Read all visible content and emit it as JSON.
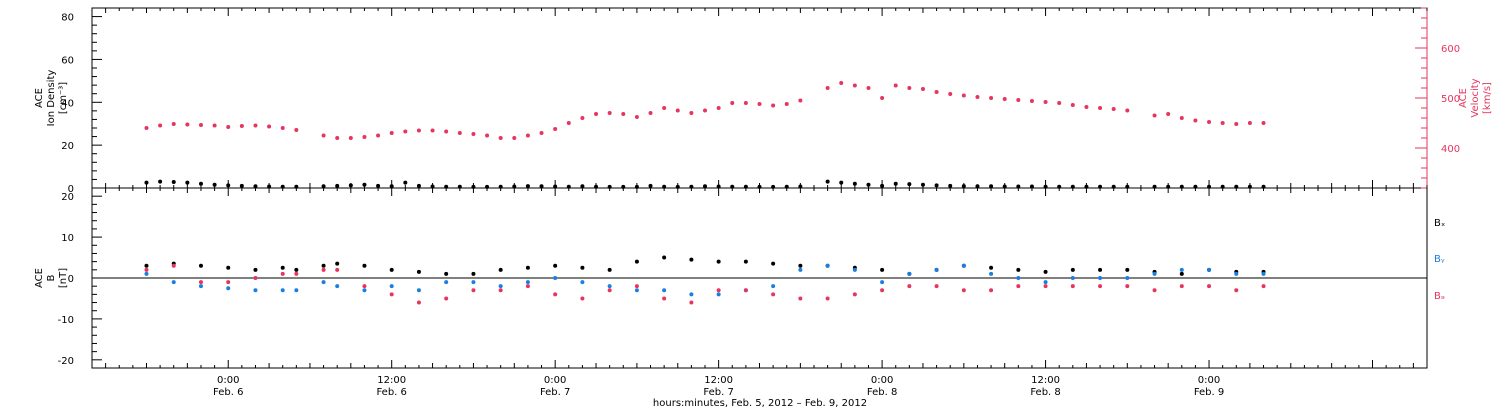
{
  "chart_data": [
    {
      "type": "scatter",
      "panel": "top",
      "ylabel": "ACE Ion Density [cm⁻³]",
      "ylabel_lines": [
        "ACE",
        "Ion Density",
        "[cm⁻³]"
      ],
      "ylim": [
        0,
        84
      ],
      "yticks": [
        0,
        20,
        40,
        60,
        80
      ],
      "y2label": "ACE Velocity [km/s]",
      "y2label_lines": [
        "ACE",
        "Velocity",
        "[km/s]"
      ],
      "y2lim": [
        320,
        680
      ],
      "y2ticks": [
        400,
        500,
        600
      ],
      "series": [
        {
          "name": "",
          "axis": "left",
          "color": "#000000",
          "x_hours": [
            -6,
            -5,
            -4,
            -3,
            -2,
            -1,
            0,
            1,
            2,
            3,
            4,
            5,
            7,
            8,
            9,
            10,
            11,
            12,
            13,
            14,
            15,
            16,
            17,
            18,
            19,
            20,
            21,
            22,
            23,
            24,
            25,
            26,
            27,
            28,
            29,
            30,
            31,
            32,
            33,
            34,
            35,
            36,
            37,
            38,
            39,
            40,
            41,
            42,
            44,
            45,
            46,
            47,
            48,
            49,
            50,
            51,
            52,
            53,
            54,
            55,
            56,
            57,
            58,
            59,
            60,
            61,
            62,
            63,
            64,
            65,
            66,
            68,
            69,
            70,
            71,
            72,
            73,
            74,
            75,
            76
          ],
          "y": [
            2.5,
            3,
            2.8,
            2.5,
            2,
            1.5,
            1.2,
            1,
            0.8,
            0.7,
            0.6,
            0.6,
            0.8,
            1,
            1.2,
            1.5,
            1,
            0.8,
            2.5,
            1,
            0.7,
            0.6,
            0.6,
            0.5,
            0.5,
            0.6,
            0.7,
            0.9,
            0.8,
            0.7,
            0.6,
            0.8,
            0.6,
            0.5,
            0.5,
            0.5,
            1,
            0.6,
            0.5,
            0.6,
            0.8,
            0.7,
            0.6,
            0.6,
            0.5,
            0.5,
            0.6,
            0.7,
            3,
            2.5,
            2,
            1.5,
            1,
            2,
            1.8,
            1.5,
            1.2,
            1,
            0.9,
            0.8,
            0.8,
            0.7,
            0.7,
            0.7,
            0.6,
            0.6,
            0.6,
            0.6,
            0.6,
            0.6,
            0.6,
            0.6,
            0.6,
            0.6,
            0.6,
            0.6,
            0.6,
            0.6,
            0.6,
            0.6
          ]
        },
        {
          "name": "",
          "axis": "right",
          "color": "#e6355e",
          "x_hours": [
            -6,
            -5,
            -4,
            -3,
            -2,
            -1,
            0,
            1,
            2,
            3,
            4,
            5,
            7,
            8,
            9,
            10,
            11,
            12,
            13,
            14,
            15,
            16,
            17,
            18,
            19,
            20,
            21,
            22,
            23,
            24,
            25,
            26,
            27,
            28,
            29,
            30,
            31,
            32,
            33,
            34,
            35,
            36,
            37,
            38,
            39,
            40,
            41,
            42,
            44,
            45,
            46,
            47,
            48,
            49,
            50,
            51,
            52,
            53,
            54,
            55,
            56,
            57,
            58,
            59,
            60,
            61,
            62,
            63,
            64,
            65,
            66,
            68,
            69,
            70,
            71,
            72,
            73,
            74,
            75,
            76
          ],
          "y": [
            440,
            445,
            448,
            447,
            446,
            445,
            442,
            444,
            445,
            443,
            440,
            436,
            425,
            420,
            420,
            422,
            425,
            430,
            433,
            435,
            435,
            433,
            430,
            428,
            425,
            420,
            420,
            425,
            430,
            438,
            450,
            460,
            468,
            470,
            468,
            462,
            470,
            480,
            475,
            470,
            475,
            480,
            490,
            490,
            488,
            485,
            488,
            495,
            520,
            530,
            525,
            520,
            500,
            525,
            520,
            518,
            512,
            508,
            505,
            502,
            500,
            498,
            496,
            494,
            492,
            490,
            486,
            482,
            480,
            478,
            475,
            465,
            468,
            460,
            455,
            452,
            450,
            448,
            450,
            450
          ]
        }
      ]
    },
    {
      "type": "scatter",
      "panel": "bottom",
      "ylabel": "ACE B [nT]",
      "ylabel_lines": [
        "ACE",
        "B",
        "[nT]"
      ],
      "ylim": [
        -22,
        22
      ],
      "yticks": [
        -20,
        -10,
        0,
        10,
        20
      ],
      "series": [
        {
          "name": "Bₓ",
          "color": "#000000",
          "x_hours": [
            -6,
            -4,
            -2,
            0,
            2,
            4,
            5,
            7,
            8,
            10,
            12,
            14,
            16,
            18,
            20,
            22,
            24,
            26,
            28,
            30,
            32,
            34,
            36,
            38,
            40,
            42,
            44,
            46,
            48,
            50,
            52,
            54,
            56,
            58,
            60,
            62,
            64,
            66,
            68,
            70,
            72,
            74,
            76
          ],
          "y": [
            3,
            3.5,
            3,
            2.5,
            2,
            2.5,
            2,
            3,
            3.5,
            3,
            2,
            1.5,
            1,
            1,
            2,
            2.5,
            3,
            2.5,
            2,
            4,
            5,
            4.5,
            4,
            4,
            3.5,
            3,
            3,
            2.5,
            2,
            1,
            2,
            3,
            2.5,
            2,
            1.5,
            2,
            2,
            2,
            1.5,
            1,
            2,
            1.5,
            1.5
          ]
        },
        {
          "name": "Bᵧ",
          "color": "#1a7fe0",
          "x_hours": [
            -6,
            -4,
            -2,
            0,
            2,
            4,
            5,
            7,
            8,
            10,
            12,
            14,
            16,
            18,
            20,
            22,
            24,
            26,
            28,
            30,
            32,
            34,
            36,
            38,
            40,
            42,
            44,
            46,
            48,
            50,
            52,
            54,
            56,
            58,
            60,
            62,
            64,
            66,
            68,
            70,
            72,
            74,
            76
          ],
          "y": [
            1,
            -1,
            -2,
            -2.5,
            -3,
            -3,
            -3,
            -1,
            -2,
            -3,
            -2,
            -3,
            -1,
            -1,
            -2,
            -1,
            0,
            -1,
            -2,
            -3,
            -3,
            -4,
            -4,
            -3,
            -2,
            2,
            3,
            2,
            -1,
            1,
            2,
            3,
            1,
            0,
            -1,
            0,
            0,
            0,
            1,
            2,
            2,
            1,
            1
          ]
        },
        {
          "name": "Bₔ",
          "color": "#e6355e",
          "x_hours": [
            -6,
            -4,
            -2,
            0,
            2,
            4,
            5,
            7,
            8,
            10,
            12,
            14,
            16,
            18,
            20,
            22,
            24,
            26,
            28,
            30,
            32,
            34,
            36,
            38,
            40,
            42,
            44,
            46,
            48,
            50,
            52,
            54,
            56,
            58,
            60,
            62,
            64,
            66,
            68,
            70,
            72,
            74,
            76
          ],
          "y": [
            2,
            3,
            -1,
            -1,
            0,
            1,
            1,
            2,
            2,
            -2,
            -4,
            -6,
            -5,
            -3,
            -3,
            -2,
            -4,
            -5,
            -3,
            -2,
            -5,
            -6,
            -3,
            -3,
            -4,
            -5,
            -5,
            -4,
            -3,
            -2,
            -2,
            -3,
            -3,
            -2,
            -2,
            -2,
            -2,
            -2,
            -3,
            -2,
            -2,
            -3,
            -2
          ]
        }
      ]
    }
  ],
  "x_axis": {
    "range_hours": [
      -10,
      88
    ],
    "ticks": [
      {
        "hours": 0,
        "time": "0:00",
        "date": "Feb. 6"
      },
      {
        "hours": 12,
        "time": "12:00",
        "date": "Feb. 6"
      },
      {
        "hours": 24,
        "time": "0:00",
        "date": "Feb. 7"
      },
      {
        "hours": 36,
        "time": "12:00",
        "date": "Feb. 7"
      },
      {
        "hours": 48,
        "time": "0:00",
        "date": "Feb. 8"
      },
      {
        "hours": 60,
        "time": "12:00",
        "date": "Feb. 8"
      },
      {
        "hours": 72,
        "time": "0:00",
        "date": "Feb. 9"
      }
    ],
    "xlabel": "hours:minutes, Feb.  5, 2012 – Feb.  9, 2012"
  },
  "legend": {
    "position": "right",
    "items": [
      {
        "label": "Bₓ",
        "color": "#000000"
      },
      {
        "label": "Bᵧ",
        "color": "#1a7fe0"
      },
      {
        "label": "Bₔ",
        "color": "#e6355e"
      }
    ]
  },
  "colors": {
    "axis": "#000000",
    "density": "#000000",
    "velocity": "#e6355e",
    "bx": "#000000",
    "by": "#1a7fe0",
    "bz": "#e6355e"
  }
}
